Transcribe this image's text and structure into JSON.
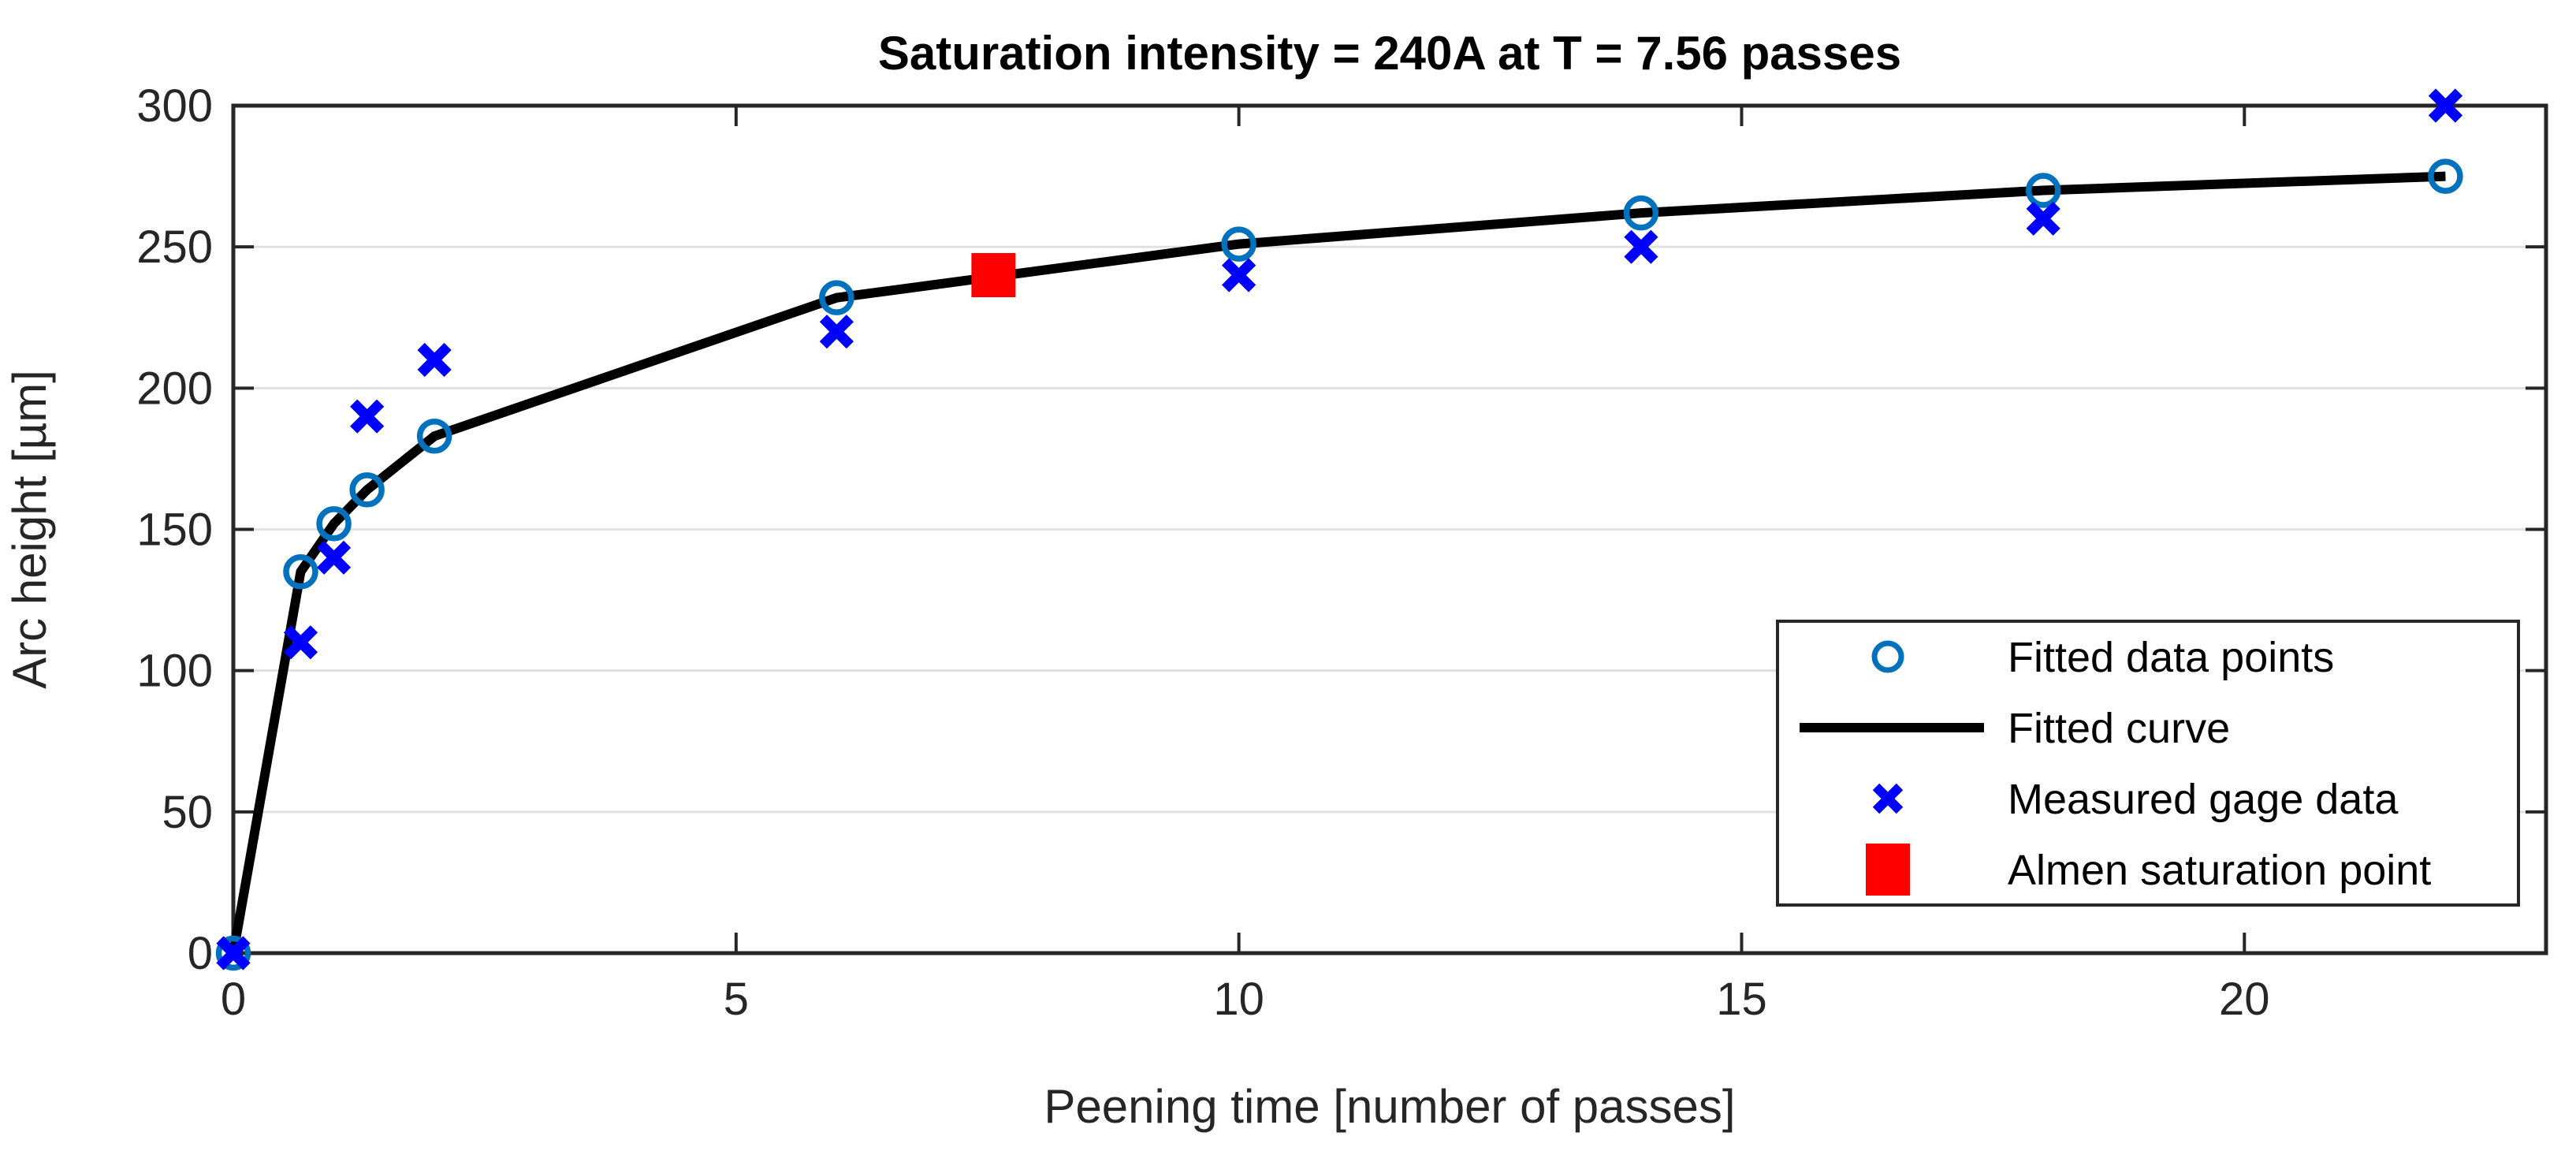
{
  "figure": {
    "background": "#FFFFFF"
  },
  "chart_data": {
    "type": "line",
    "title": "Saturation intensity = 240A at T = 7.56 passes",
    "xlabel": "Peening time [number of passes]",
    "ylabel": "Arc height [µm]",
    "xlim": [
      0,
      23
    ],
    "ylim": [
      0,
      300
    ],
    "xticks": [
      0,
      5,
      10,
      15,
      20
    ],
    "yticks": [
      0,
      50,
      100,
      150,
      200,
      250,
      300
    ],
    "grid": "horizontal-only",
    "legend_position": "inside-right-middle",
    "axis_color": "#262626",
    "grid_color": "#E0E0E0",
    "series": [
      {
        "name": "Fitted data points",
        "type": "scatter",
        "marker": "open-circle",
        "color": "#0072BD",
        "points": [
          [
            0,
            0
          ],
          [
            0.67,
            135
          ],
          [
            1,
            152
          ],
          [
            1.33,
            164
          ],
          [
            2,
            183
          ],
          [
            6,
            232
          ],
          [
            10,
            251
          ],
          [
            14,
            262
          ],
          [
            18,
            270
          ],
          [
            22,
            275
          ]
        ]
      },
      {
        "name": "Fitted curve",
        "type": "line",
        "marker": "none",
        "color": "#000000",
        "points": [
          [
            0,
            0
          ],
          [
            0.67,
            135
          ],
          [
            1,
            152
          ],
          [
            1.33,
            164
          ],
          [
            2,
            183
          ],
          [
            6,
            232
          ],
          [
            10,
            251
          ],
          [
            14,
            262
          ],
          [
            18,
            270
          ],
          [
            22,
            275
          ]
        ]
      },
      {
        "name": "Measured gage data",
        "type": "scatter",
        "marker": "x",
        "color": "#0000FF",
        "points": [
          [
            0,
            0
          ],
          [
            0.67,
            110
          ],
          [
            1,
            140
          ],
          [
            1.33,
            190
          ],
          [
            2,
            210
          ],
          [
            6,
            220
          ],
          [
            10,
            240
          ],
          [
            14,
            250
          ],
          [
            18,
            260
          ],
          [
            22,
            300
          ]
        ]
      },
      {
        "name": "Almen saturation point",
        "type": "scatter",
        "marker": "filled-square",
        "color": "#FF0000",
        "points": [
          [
            7.56,
            240
          ]
        ]
      }
    ]
  }
}
